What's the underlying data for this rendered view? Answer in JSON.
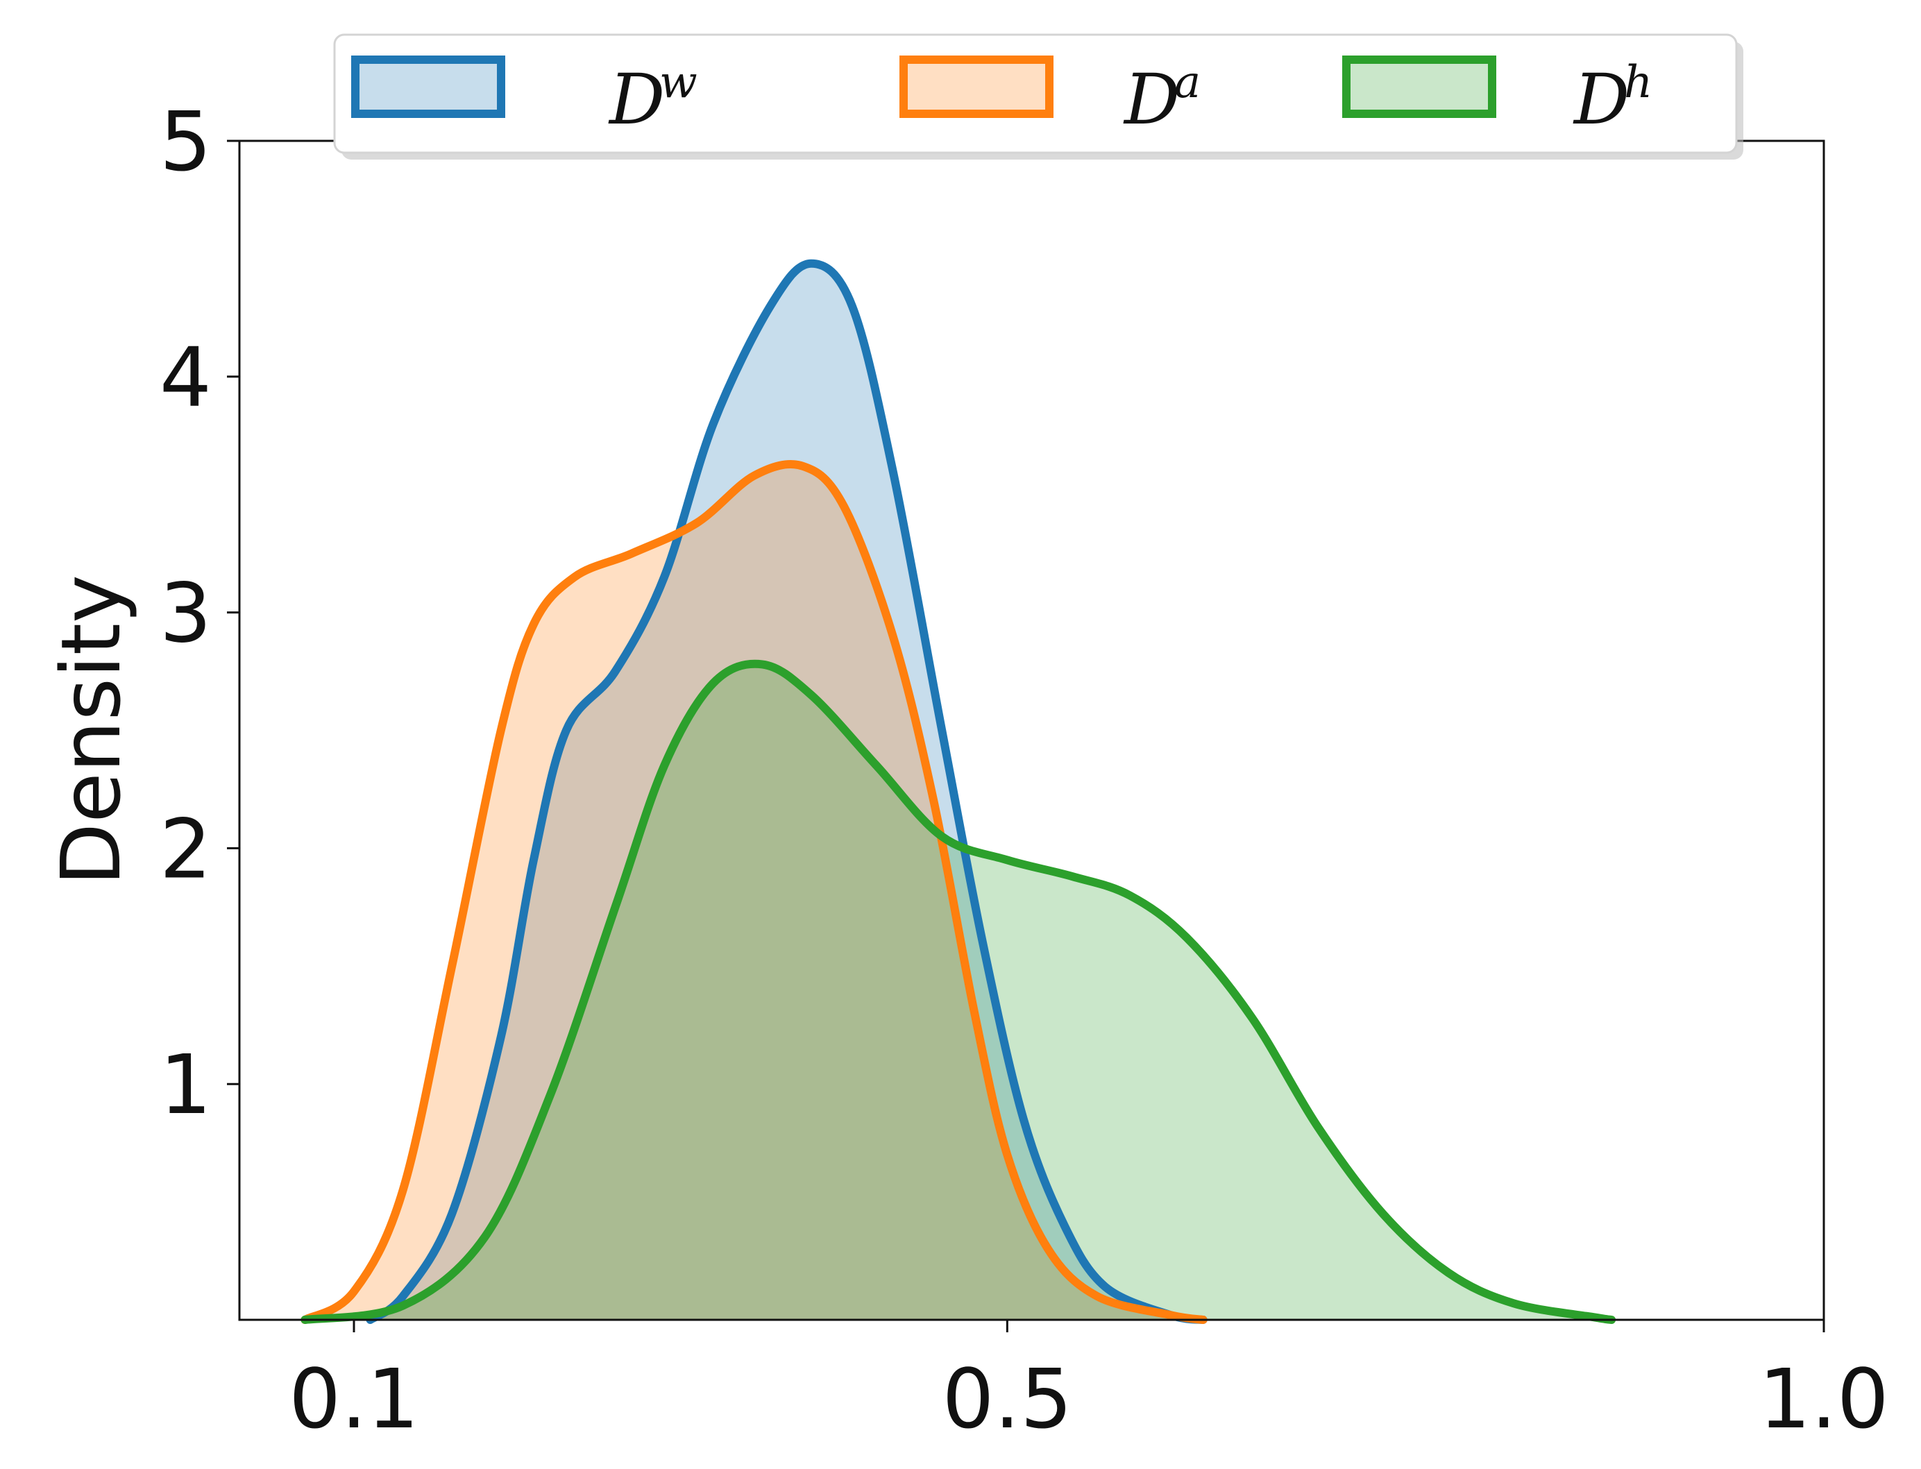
{
  "chart_data": {
    "type": "area",
    "xlabel": "",
    "ylabel": "Density",
    "xlim": [
      0.03,
      1.0
    ],
    "ylim": [
      0,
      5
    ],
    "xticks": [
      0.1,
      0.5,
      1.0
    ],
    "xtick_labels": [
      "0.1",
      "0.5",
      "1.0"
    ],
    "yticks": [
      1,
      2,
      3,
      4,
      5
    ],
    "ytick_labels": [
      "1",
      "2",
      "3",
      "4",
      "5"
    ],
    "grid": false,
    "legend_position": "top",
    "series": [
      {
        "name": "D",
        "name_sup": "w",
        "color": "#1f77b4",
        "fill": "#1f77b4",
        "points": [
          [
            0.11,
            0.0
          ],
          [
            0.13,
            0.1
          ],
          [
            0.16,
            0.45
          ],
          [
            0.19,
            1.2
          ],
          [
            0.21,
            1.95
          ],
          [
            0.23,
            2.5
          ],
          [
            0.26,
            2.75
          ],
          [
            0.29,
            3.15
          ],
          [
            0.32,
            3.8
          ],
          [
            0.355,
            4.3
          ],
          [
            0.38,
            4.48
          ],
          [
            0.405,
            4.3
          ],
          [
            0.43,
            3.6
          ],
          [
            0.46,
            2.5
          ],
          [
            0.485,
            1.6
          ],
          [
            0.51,
            0.85
          ],
          [
            0.535,
            0.4
          ],
          [
            0.56,
            0.14
          ],
          [
            0.6,
            0.02
          ],
          [
            0.62,
            0.0
          ]
        ]
      },
      {
        "name": "D",
        "name_sup": "a",
        "color": "#ff7f0e",
        "fill": "#ff7f0e",
        "points": [
          [
            0.07,
            0.0
          ],
          [
            0.1,
            0.12
          ],
          [
            0.13,
            0.55
          ],
          [
            0.16,
            1.5
          ],
          [
            0.19,
            2.5
          ],
          [
            0.21,
            2.95
          ],
          [
            0.235,
            3.15
          ],
          [
            0.27,
            3.25
          ],
          [
            0.31,
            3.38
          ],
          [
            0.345,
            3.58
          ],
          [
            0.375,
            3.62
          ],
          [
            0.4,
            3.45
          ],
          [
            0.43,
            2.9
          ],
          [
            0.455,
            2.2
          ],
          [
            0.48,
            1.3
          ],
          [
            0.5,
            0.7
          ],
          [
            0.525,
            0.3
          ],
          [
            0.555,
            0.1
          ],
          [
            0.6,
            0.02
          ],
          [
            0.62,
            0.0
          ]
        ]
      },
      {
        "name": "D",
        "name_sup": "h",
        "color": "#2ca02c",
        "fill": "#2ca02c",
        "points": [
          [
            0.07,
            0.0
          ],
          [
            0.13,
            0.06
          ],
          [
            0.18,
            0.35
          ],
          [
            0.22,
            0.95
          ],
          [
            0.26,
            1.75
          ],
          [
            0.29,
            2.35
          ],
          [
            0.32,
            2.7
          ],
          [
            0.35,
            2.78
          ],
          [
            0.38,
            2.65
          ],
          [
            0.42,
            2.35
          ],
          [
            0.46,
            2.05
          ],
          [
            0.5,
            1.95
          ],
          [
            0.54,
            1.88
          ],
          [
            0.575,
            1.8
          ],
          [
            0.61,
            1.62
          ],
          [
            0.65,
            1.28
          ],
          [
            0.69,
            0.82
          ],
          [
            0.73,
            0.45
          ],
          [
            0.77,
            0.2
          ],
          [
            0.81,
            0.07
          ],
          [
            0.86,
            0.01
          ],
          [
            0.87,
            0.0
          ]
        ]
      }
    ]
  }
}
